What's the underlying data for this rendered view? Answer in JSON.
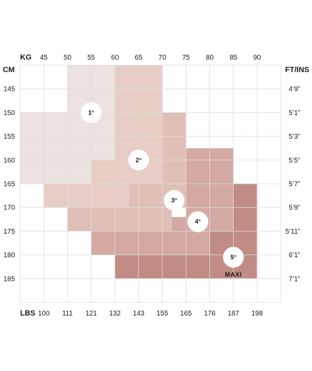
{
  "chart_data": {
    "type": "heatmap",
    "title": "",
    "kg_axis": {
      "label": "KG",
      "ticks": [
        "45",
        "50",
        "55",
        "60",
        "65",
        "70",
        "75",
        "80",
        "85",
        "90"
      ],
      "range": [
        40,
        95
      ]
    },
    "lbs_axis": {
      "label": "LBS",
      "ticks": [
        "100",
        "111",
        "121",
        "132",
        "143",
        "155",
        "165",
        "176",
        "187",
        "198"
      ]
    },
    "cm_axis": {
      "label": "CM",
      "ticks": [
        "145",
        "150",
        "155",
        "160",
        "165",
        "170",
        "175",
        "180",
        "185"
      ],
      "range": [
        140,
        190
      ]
    },
    "ftin_axis": {
      "label": "FT/INS",
      "ticks": [
        "4’9”",
        "5’1”",
        "5’3”",
        "5’5”",
        "5’7”",
        "5’9”",
        "5’11”",
        "6’1”",
        "7’1”"
      ]
    },
    "grid": true,
    "sizes": [
      {
        "label": "1°",
        "color": "#ece2df",
        "label_at": {
          "kg": 55,
          "cm": 150
        },
        "regions": [
          {
            "kg": [
              50,
              60
            ],
            "cm": [
              140,
              165
            ]
          },
          {
            "kg": [
              40,
              50
            ],
            "cm": [
              150,
              165
            ]
          }
        ]
      },
      {
        "label": "2°",
        "color": "#e8cdc7",
        "label_at": {
          "kg": 65,
          "cm": 160
        },
        "regions": [
          {
            "kg": [
              60,
              70
            ],
            "cm": [
              140,
              160
            ]
          },
          {
            "kg": [
              55,
              75
            ],
            "cm": [
              160,
              165
            ]
          },
          {
            "kg": [
              45,
              70
            ],
            "cm": [
              165,
              170
            ]
          }
        ]
      },
      {
        "label": "3°",
        "color": "#e0bfb7",
        "label_at": {
          "kg": 72.5,
          "cm": 168.5
        },
        "regions": [
          {
            "kg": [
              70,
              75
            ],
            "cm": [
              150,
              165
            ]
          },
          {
            "kg": [
              63,
              76
            ],
            "cm": [
              165,
              170
            ]
          },
          {
            "kg": [
              50,
              72
            ],
            "cm": [
              170,
              175
            ]
          }
        ]
      },
      {
        "label": "4°",
        "color": "#d4a9a3",
        "label_at": {
          "kg": 77.5,
          "cm": 173
        },
        "regions": [
          {
            "kg": [
              75,
              85
            ],
            "cm": [
              157.5,
              175
            ]
          },
          {
            "kg": [
              72,
              85
            ],
            "cm": [
              172,
              175
            ]
          },
          {
            "kg": [
              55,
              80
            ],
            "cm": [
              175,
              180
            ]
          }
        ]
      },
      {
        "label": "5°",
        "caption": "MAXI",
        "color": "#c08c84",
        "label_at": {
          "kg": 85,
          "cm": 180.5
        },
        "regions": [
          {
            "kg": [
              85,
              90
            ],
            "cm": [
              165,
              185
            ]
          },
          {
            "kg": [
              80,
              85
            ],
            "cm": [
              175,
              185
            ]
          },
          {
            "kg": [
              60,
              80
            ],
            "cm": [
              180,
              185
            ]
          }
        ]
      }
    ]
  }
}
